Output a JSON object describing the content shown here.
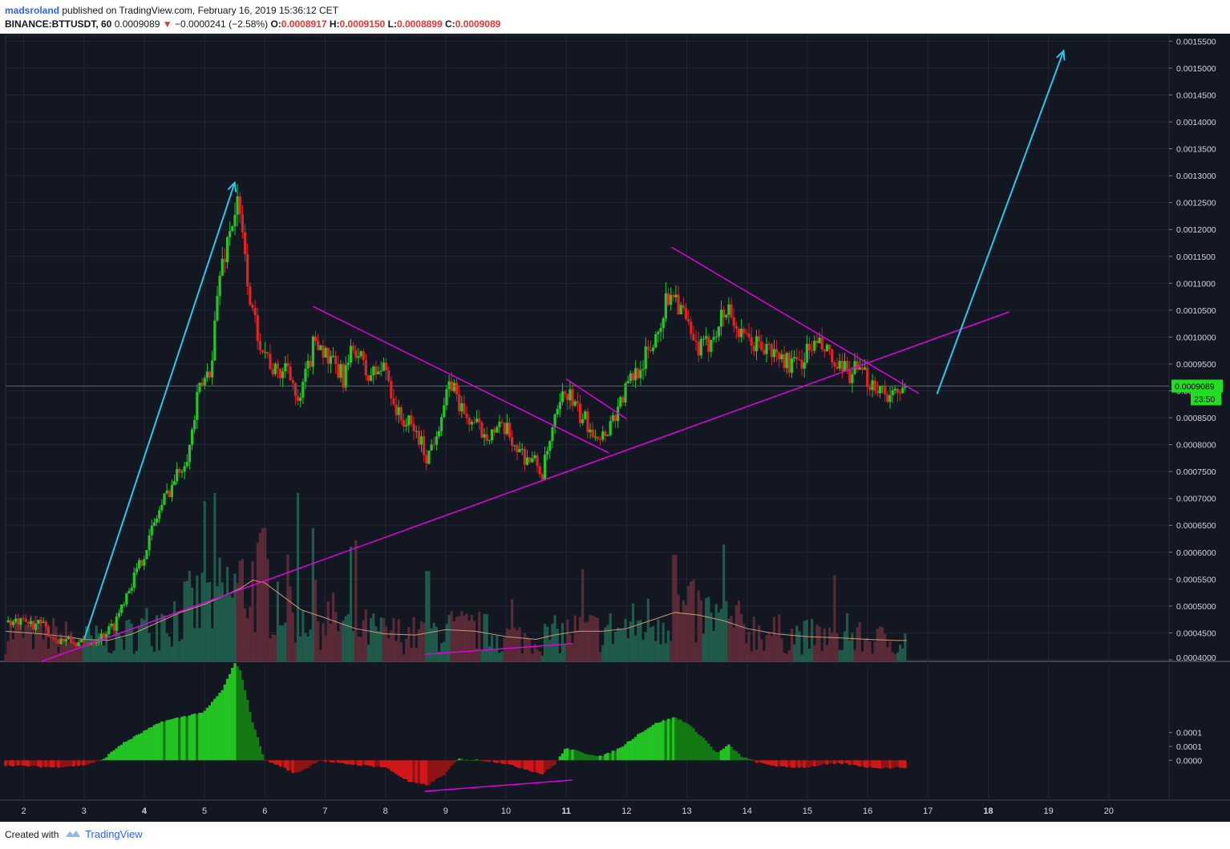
{
  "header": {
    "author": "madsroland",
    "published_text": "published on TradingView.com, February 16, 2019 15:36:12 CET",
    "symbol": "BINANCE:BTTUSDT, 60",
    "last": "0.0009089",
    "change": "−0.0000241 (−2.58%)",
    "o_label": "O:",
    "o_value": "0.0008917",
    "h_label": "H:",
    "h_value": "0.0009150",
    "l_label": "L:",
    "l_value": "0.0008899",
    "c_label": "C:",
    "c_value": "0.0009089"
  },
  "footer": {
    "created_with": "Created with",
    "brand": "TradingView"
  },
  "price_tag": {
    "value": "0.0009089",
    "countdown": "23:50"
  },
  "colors": {
    "background": "#131722",
    "up": "#26c626",
    "down": "#e02323",
    "trendline": "#e000e0",
    "arrow": "#29c8e8",
    "price_line": "#1e8c3c"
  },
  "chart_data": [
    {
      "type": "candlestick",
      "title": "BINANCE:BTTUSDT, 60",
      "x_ticks": [
        "2",
        "3",
        "4",
        "5",
        "6",
        "7",
        "8",
        "9",
        "10",
        "11",
        "12",
        "13",
        "14",
        "15",
        "16",
        "17",
        "18",
        "19",
        "20"
      ],
      "bold_x_ticks": [
        "4",
        "11",
        "18"
      ],
      "y_ticks": [
        "0.0015500",
        "0.0015000",
        "0.0014500",
        "0.0014000",
        "0.0013500",
        "0.0013000",
        "0.0012500",
        "0.0012000",
        "0.0011500",
        "0.0011000",
        "0.0010500",
        "0.0010000",
        "0.0009500",
        "0.0009000",
        "0.0008500",
        "0.0008000",
        "0.0007500",
        "0.0007000",
        "0.0006500",
        "0.0006000",
        "0.0005500",
        "0.0005000",
        "0.0004500",
        "0.0004000"
      ],
      "ylim": [
        0.000397,
        0.001561
      ],
      "xlim": [
        1.7,
        21.0
      ],
      "grid": true,
      "price_path": [
        [
          1.7,
          0.00047
        ],
        [
          2.3,
          0.000465
        ],
        [
          2.5,
          0.00044
        ],
        [
          3.0,
          0.000428
        ],
        [
          3.3,
          0.000445
        ],
        [
          3.5,
          0.000465
        ],
        [
          3.7,
          0.000525
        ],
        [
          3.9,
          0.00057
        ],
        [
          4.05,
          0.000615
        ],
        [
          4.2,
          0.000665
        ],
        [
          4.4,
          0.000715
        ],
        [
          4.55,
          0.000745
        ],
        [
          4.75,
          0.000795
        ],
        [
          4.9,
          0.000895
        ],
        [
          5.1,
          0.000945
        ],
        [
          5.25,
          0.001115
        ],
        [
          5.45,
          0.001215
        ],
        [
          5.55,
          0.001245
        ],
        [
          5.65,
          0.001165
        ],
        [
          5.8,
          0.001035
        ],
        [
          6.0,
          0.000975
        ],
        [
          6.2,
          0.000925
        ],
        [
          6.4,
          0.000955
        ],
        [
          6.55,
          0.000865
        ],
        [
          6.7,
          0.000935
        ],
        [
          6.85,
          0.001005
        ],
        [
          7.05,
          0.000955
        ],
        [
          7.3,
          0.000925
        ],
        [
          7.5,
          0.000985
        ],
        [
          7.7,
          0.000925
        ],
        [
          8.0,
          0.000945
        ],
        [
          8.2,
          0.000855
        ],
        [
          8.5,
          0.000825
        ],
        [
          8.7,
          0.000775
        ],
        [
          8.95,
          0.000865
        ],
        [
          9.1,
          0.000915
        ],
        [
          9.3,
          0.000855
        ],
        [
          9.6,
          0.000825
        ],
        [
          10.0,
          0.000825
        ],
        [
          10.25,
          0.000785
        ],
        [
          10.5,
          0.000765
        ],
        [
          10.6,
          0.000745
        ],
        [
          10.8,
          0.000835
        ],
        [
          11.0,
          0.000905
        ],
        [
          11.2,
          0.000855
        ],
        [
          11.4,
          0.000835
        ],
        [
          11.6,
          0.000815
        ],
        [
          11.8,
          0.000855
        ],
        [
          12.0,
          0.000905
        ],
        [
          12.2,
          0.000945
        ],
        [
          12.4,
          0.000975
        ],
        [
          12.6,
          0.001045
        ],
        [
          12.75,
          0.001095
        ],
        [
          12.9,
          0.001055
        ],
        [
          13.1,
          0.000985
        ],
        [
          13.3,
          0.000975
        ],
        [
          13.5,
          0.001025
        ],
        [
          13.7,
          0.001055
        ],
        [
          13.9,
          0.000995
        ],
        [
          14.2,
          0.000985
        ],
        [
          14.5,
          0.000965
        ],
        [
          14.8,
          0.000945
        ],
        [
          15.1,
          0.000985
        ],
        [
          15.3,
          0.000975
        ],
        [
          15.5,
          0.000935
        ],
        [
          15.8,
          0.000935
        ],
        [
          16.1,
          0.000915
        ],
        [
          16.35,
          0.000895
        ],
        [
          16.5,
          0.000885
        ],
        [
          16.65,
          0.000909
        ]
      ],
      "volume_ma_path": [
        [
          1.7,
          0.000453
        ],
        [
          2.3,
          0.000448
        ],
        [
          2.7,
          0.000443
        ],
        [
          3.0,
          0.000438
        ],
        [
          3.4,
          0.000436
        ],
        [
          3.8,
          0.000448
        ],
        [
          4.2,
          0.000468
        ],
        [
          4.6,
          0.000488
        ],
        [
          5.0,
          0.000503
        ],
        [
          5.3,
          0.000518
        ],
        [
          5.6,
          0.000533
        ],
        [
          5.8,
          0.000548
        ],
        [
          6.0,
          0.000543
        ],
        [
          6.3,
          0.000518
        ],
        [
          6.6,
          0.000493
        ],
        [
          7.0,
          0.000478
        ],
        [
          7.5,
          0.000458
        ],
        [
          8.0,
          0.000448
        ],
        [
          8.5,
          0.000446
        ],
        [
          9.0,
          0.000456
        ],
        [
          9.5,
          0.000453
        ],
        [
          10.0,
          0.000443
        ],
        [
          10.5,
          0.000438
        ],
        [
          10.8,
          0.000446
        ],
        [
          11.2,
          0.000453
        ],
        [
          11.6,
          0.000453
        ],
        [
          12.0,
          0.000458
        ],
        [
          12.4,
          0.000473
        ],
        [
          12.8,
          0.000488
        ],
        [
          13.2,
          0.000483
        ],
        [
          13.6,
          0.000473
        ],
        [
          14.0,
          0.000458
        ],
        [
          14.5,
          0.000448
        ],
        [
          15.0,
          0.000443
        ],
        [
          15.5,
          0.000441
        ],
        [
          16.0,
          0.000438
        ],
        [
          16.5,
          0.000436
        ],
        [
          16.65,
          0.000436
        ]
      ],
      "volume_peaks": [
        [
          5.0,
          0.000695
        ],
        [
          6.0,
          0.000645
        ],
        [
          6.8,
          0.000645
        ],
        [
          8.7,
          0.000565
        ],
        [
          12.8,
          0.000595
        ]
      ],
      "volume_base": 0.000397,
      "volume_scale_top": 0.00071,
      "trendlines": [
        [
          [
            2.3,
            0.000397
          ],
          [
            18.35,
            0.001047
          ]
        ],
        [
          [
            6.8,
            0.001057
          ],
          [
            11.7,
            0.000785
          ]
        ],
        [
          [
            11.0,
            0.000922
          ],
          [
            12.0,
            0.000848
          ]
        ],
        [
          [
            12.75,
            0.001167
          ],
          [
            16.85,
            0.000895
          ]
        ],
        [
          [
            8.65,
            0.00041
          ],
          [
            11.1,
            0.00043
          ]
        ]
      ],
      "arrows": [
        [
          [
            3.0,
            0.000437
          ],
          [
            5.5,
            0.001287
          ]
        ],
        [
          [
            17.15,
            0.000894
          ],
          [
            19.25,
            0.001532
          ]
        ]
      ],
      "last_price": 0.0009089
    },
    {
      "type": "histogram",
      "y_ticks": [
        "0.0001",
        "0.0001",
        "0.0000"
      ],
      "zero_line": true,
      "path": [
        [
          1.7,
          -1.8e-05
        ],
        [
          2.5,
          -2.5e-05
        ],
        [
          3.0,
          -1.8e-05
        ],
        [
          3.3,
          0.0
        ],
        [
          3.6,
          5.5e-05
        ],
        [
          4.0,
          0.000105
        ],
        [
          4.3,
          0.00014
        ],
        [
          4.6,
          0.000155
        ],
        [
          5.0,
          0.000175
        ],
        [
          5.3,
          0.000255
        ],
        [
          5.5,
          0.00035
        ],
        [
          5.6,
          0.00032
        ],
        [
          5.8,
          0.000135
        ],
        [
          6.0,
          0.0
        ],
        [
          6.3,
          -2.5e-05
        ],
        [
          6.5,
          -4.8e-05
        ],
        [
          6.7,
          -2.8e-05
        ],
        [
          6.9,
          0.0
        ],
        [
          7.2,
          -1e-05
        ],
        [
          7.6,
          -1.8e-05
        ],
        [
          8.0,
          -2.5e-05
        ],
        [
          8.4,
          -7.8e-05
        ],
        [
          8.7,
          -9e-05
        ],
        [
          9.0,
          -4.8e-05
        ],
        [
          9.2,
          5e-06
        ],
        [
          9.6,
          0.0
        ],
        [
          9.9,
          -8e-06
        ],
        [
          10.3,
          -3e-05
        ],
        [
          10.6,
          -5e-05
        ],
        [
          10.8,
          -1.8e-05
        ],
        [
          11.0,
          4.5e-05
        ],
        [
          11.3,
          2.5e-05
        ],
        [
          11.6,
          1.5e-05
        ],
        [
          11.9,
          4.5e-05
        ],
        [
          12.2,
          9.5e-05
        ],
        [
          12.5,
          0.000135
        ],
        [
          12.8,
          0.000155
        ],
        [
          13.0,
          0.000135
        ],
        [
          13.3,
          7.5e-05
        ],
        [
          13.5,
          2.5e-05
        ],
        [
          13.7,
          5.5e-05
        ],
        [
          13.9,
          1.5e-05
        ],
        [
          14.2,
          -1e-05
        ],
        [
          14.6,
          -2.5e-05
        ],
        [
          15.0,
          -2.5e-05
        ],
        [
          15.3,
          -1.5e-05
        ],
        [
          15.6,
          -1.2e-05
        ],
        [
          16.0,
          -2.5e-05
        ],
        [
          16.3,
          -2.8e-05
        ],
        [
          16.65,
          -2.5e-05
        ]
      ],
      "ylim": [
        -0.000135,
        0.000345
      ]
    }
  ]
}
